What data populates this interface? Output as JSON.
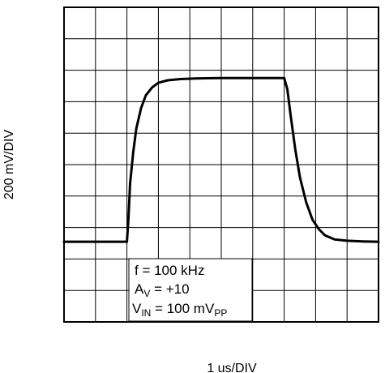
{
  "chart_data": {
    "type": "line",
    "xlabel": "1 us/DIV",
    "ylabel": "200 mV/DIV",
    "xlim": [
      0,
      10
    ],
    "ylim": [
      0,
      10
    ],
    "grid": true,
    "x_divisions": 10,
    "y_divisions": 10,
    "series": [
      {
        "x": [
          0,
          2.0,
          2.05,
          2.1,
          2.2,
          2.3,
          2.45,
          2.6,
          2.8,
          3.0,
          3.3,
          3.7,
          4.2,
          5.0,
          6.0,
          7.0,
          7.1,
          7.2,
          7.35,
          7.5,
          7.7,
          7.9,
          8.1,
          8.3,
          8.6,
          9.0,
          9.5,
          10
        ],
        "y": [
          2.55,
          2.55,
          3.3,
          4.4,
          5.4,
          6.15,
          6.8,
          7.2,
          7.45,
          7.6,
          7.68,
          7.72,
          7.74,
          7.75,
          7.75,
          7.75,
          7.4,
          6.6,
          5.5,
          4.6,
          3.8,
          3.25,
          2.95,
          2.75,
          2.62,
          2.58,
          2.56,
          2.55
        ]
      }
    ],
    "annotations": [
      "f = 100 kHz",
      "AV = +10",
      "VIN = 100 mVPP"
    ]
  }
}
